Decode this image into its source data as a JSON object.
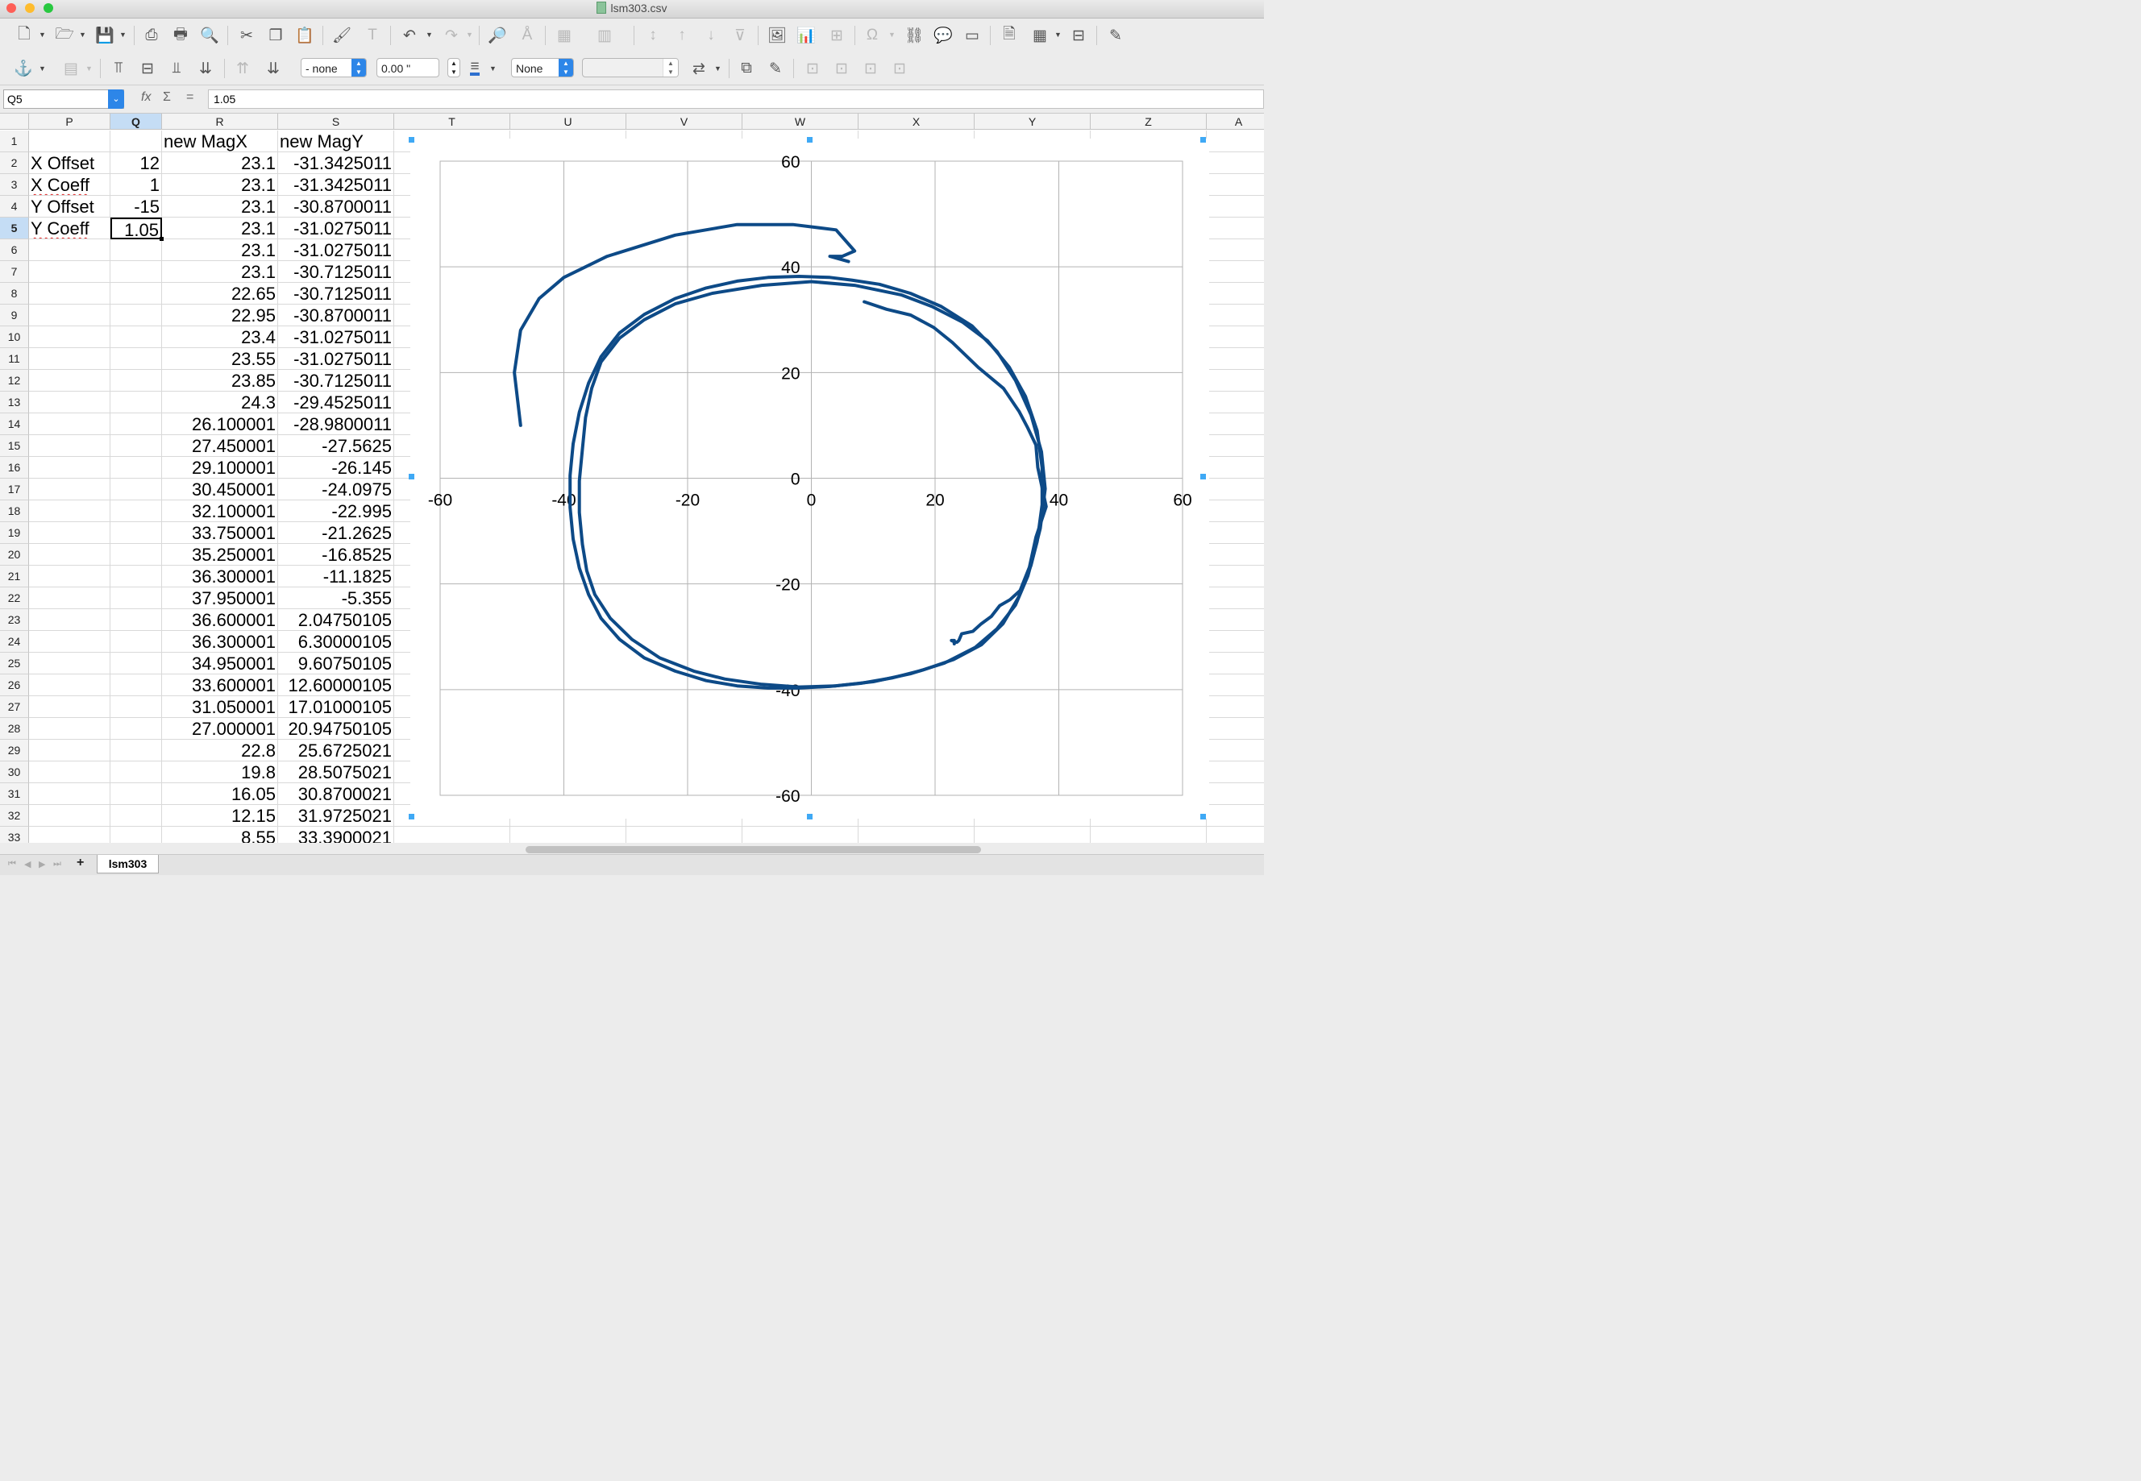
{
  "window": {
    "title": "lsm303.csv",
    "colors": {
      "close": "#fe5f57",
      "minimize": "#febc2e",
      "zoom": "#28c840"
    }
  },
  "toolbar1": {
    "icons": [
      "new-document-icon",
      "open-folder-icon",
      "save-icon",
      "export-pdf-icon",
      "print-icon",
      "print-preview-icon",
      "cut-icon",
      "copy-icon",
      "paste-icon",
      "clone-formatting-icon",
      "clear-formatting-icon",
      "undo-icon",
      "redo-icon",
      "find-replace-icon",
      "spelling-icon",
      "table-icon",
      "columns-icon",
      "sort-ascending-icon",
      "sort-descending-icon",
      "autofilter-icon",
      "insert-image-icon",
      "insert-chart-icon",
      "pivot-table-icon",
      "special-character-icon",
      "hyperlink-icon",
      "comment-icon",
      "headers-footers-icon",
      "define-print-area-icon",
      "freeze-rows-icon",
      "split-window-icon",
      "show-draw-functions-icon"
    ]
  },
  "toolbar2": {
    "line_style_value": "- none",
    "line_width_value": "0.00 \"",
    "area_style_value": "None",
    "color_value": ""
  },
  "formula_bar": {
    "cell_ref": "Q5",
    "formula": "1.05",
    "fx": "fx",
    "sigma": "Σ",
    "equals": "="
  },
  "sheet": {
    "columns": [
      "P",
      "Q",
      "R",
      "S",
      "T",
      "U",
      "V",
      "W",
      "X",
      "Y",
      "Z",
      "A"
    ],
    "selected_column": "Q",
    "selected_row": 5,
    "rows": [
      {
        "n": 1,
        "P": "",
        "Q": "",
        "R": "new MagX",
        "S": "new MagY"
      },
      {
        "n": 2,
        "P": "X Offset",
        "Q": "12",
        "R": "23.1",
        "S": "-31.3425011"
      },
      {
        "n": 3,
        "P": "X Coeff",
        "Q": "1",
        "R": "23.1",
        "S": "-31.3425011"
      },
      {
        "n": 4,
        "P": "Y Offset",
        "Q": "-15",
        "R": "23.1",
        "S": "-30.8700011"
      },
      {
        "n": 5,
        "P": "Y Coeff",
        "Q": "1.05",
        "R": "23.1",
        "S": "-31.0275011"
      },
      {
        "n": 6,
        "P": "",
        "Q": "",
        "R": "23.1",
        "S": "-31.0275011"
      },
      {
        "n": 7,
        "P": "",
        "Q": "",
        "R": "23.1",
        "S": "-30.7125011"
      },
      {
        "n": 8,
        "P": "",
        "Q": "",
        "R": "22.65",
        "S": "-30.7125011"
      },
      {
        "n": 9,
        "P": "",
        "Q": "",
        "R": "22.95",
        "S": "-30.8700011"
      },
      {
        "n": 10,
        "P": "",
        "Q": "",
        "R": "23.4",
        "S": "-31.0275011"
      },
      {
        "n": 11,
        "P": "",
        "Q": "",
        "R": "23.55",
        "S": "-31.0275011"
      },
      {
        "n": 12,
        "P": "",
        "Q": "",
        "R": "23.85",
        "S": "-30.7125011"
      },
      {
        "n": 13,
        "P": "",
        "Q": "",
        "R": "24.3",
        "S": "-29.4525011"
      },
      {
        "n": 14,
        "P": "",
        "Q": "",
        "R": "26.100001",
        "S": "-28.9800011"
      },
      {
        "n": 15,
        "P": "",
        "Q": "",
        "R": "27.450001",
        "S": "-27.5625"
      },
      {
        "n": 16,
        "P": "",
        "Q": "",
        "R": "29.100001",
        "S": "-26.145"
      },
      {
        "n": 17,
        "P": "",
        "Q": "",
        "R": "30.450001",
        "S": "-24.0975"
      },
      {
        "n": 18,
        "P": "",
        "Q": "",
        "R": "32.100001",
        "S": "-22.995"
      },
      {
        "n": 19,
        "P": "",
        "Q": "",
        "R": "33.750001",
        "S": "-21.2625"
      },
      {
        "n": 20,
        "P": "",
        "Q": "",
        "R": "35.250001",
        "S": "-16.8525"
      },
      {
        "n": 21,
        "P": "",
        "Q": "",
        "R": "36.300001",
        "S": "-11.1825"
      },
      {
        "n": 22,
        "P": "",
        "Q": "",
        "R": "37.950001",
        "S": "-5.355"
      },
      {
        "n": 23,
        "P": "",
        "Q": "",
        "R": "36.600001",
        "S": "2.04750105"
      },
      {
        "n": 24,
        "P": "",
        "Q": "",
        "R": "36.300001",
        "S": "6.30000105"
      },
      {
        "n": 25,
        "P": "",
        "Q": "",
        "R": "34.950001",
        "S": "9.60750105"
      },
      {
        "n": 26,
        "P": "",
        "Q": "",
        "R": "33.600001",
        "S": "12.60000105"
      },
      {
        "n": 27,
        "P": "",
        "Q": "",
        "R": "31.050001",
        "S": "17.01000105"
      },
      {
        "n": 28,
        "P": "",
        "Q": "",
        "R": "27.000001",
        "S": "20.94750105"
      },
      {
        "n": 29,
        "P": "",
        "Q": "",
        "R": "22.8",
        "S": "25.6725021"
      },
      {
        "n": 30,
        "P": "",
        "Q": "",
        "R": "19.8",
        "S": "28.5075021"
      },
      {
        "n": 31,
        "P": "",
        "Q": "",
        "R": "16.05",
        "S": "30.8700021"
      },
      {
        "n": 32,
        "P": "",
        "Q": "",
        "R": "12.15",
        "S": "31.9725021"
      },
      {
        "n": 33,
        "P": "",
        "Q": "",
        "R": "8.55",
        "S": "33.3900021"
      }
    ]
  },
  "chart_data": {
    "type": "scatter",
    "line_color": "#0d4a87",
    "xlim": [
      -60,
      60
    ],
    "ylim": [
      -60,
      60
    ],
    "x_ticks": [
      "-60",
      "-40",
      "-20",
      "0",
      "20",
      "40",
      "60"
    ],
    "y_ticks": [
      "60",
      "40",
      "20",
      "0",
      "-20",
      "-40",
      "-60"
    ],
    "grid": true,
    "series": [
      {
        "x": [
          23.1,
          23.1,
          23.1,
          23.1,
          23.1,
          23.1,
          22.65,
          22.95,
          23.4,
          23.55,
          23.85,
          24.3,
          26.1,
          27.45,
          29.1,
          30.45,
          32.1,
          33.75,
          35.25,
          36.3,
          37.95,
          36.6,
          36.3,
          34.95,
          33.6,
          31.05,
          27.0,
          22.8,
          19.8,
          16.05,
          12.15,
          8.55
        ],
        "y": [
          -31.34,
          -31.34,
          -30.87,
          -31.03,
          -31.03,
          -30.71,
          -30.71,
          -30.87,
          -31.03,
          -31.03,
          -30.71,
          -29.45,
          -28.98,
          -27.56,
          -26.15,
          -24.1,
          -23.0,
          -21.26,
          -16.85,
          -11.18,
          -5.36,
          2.05,
          6.3,
          9.61,
          12.6,
          17.01,
          20.95,
          25.67,
          28.51,
          30.87,
          31.97,
          33.39
        ]
      },
      {
        "x": [
          6.5,
          3,
          -2,
          -7,
          -12,
          -17,
          -22,
          -27,
          -31,
          -34,
          -36,
          -37.5,
          -38.5,
          -39,
          -39,
          -38.5,
          -37.5,
          -36,
          -34,
          -31,
          -27,
          -22,
          -17,
          -12,
          -7,
          -2,
          3,
          8,
          13,
          18,
          23,
          27.5,
          31,
          33.5,
          35.5,
          37,
          37.8,
          37.2,
          35.5,
          33,
          30,
          26,
          21,
          16,
          11,
          6.5
        ],
        "y": [
          37.5,
          38,
          38.2,
          38,
          37.3,
          36,
          34,
          31,
          27.5,
          23,
          18,
          12.5,
          6.5,
          0.5,
          -5.5,
          -11.5,
          -17,
          -22,
          -26.5,
          -30.5,
          -34,
          -36.5,
          -38.3,
          -39.3,
          -39.7,
          -39.7,
          -39.4,
          -38.8,
          -37.8,
          -36.3,
          -34.3,
          -31.5,
          -27.5,
          -22.5,
          -16.5,
          -9.5,
          -2,
          5,
          12,
          18.5,
          24,
          28.8,
          32.5,
          35,
          36.7,
          37.5
        ]
      },
      {
        "x": [
          7,
          0,
          -8,
          -16,
          -22,
          -27,
          -31,
          -34,
          -35.5,
          -36.5,
          -37,
          -37.5,
          -37.5,
          -37,
          -36.3,
          -35,
          -32.5,
          -29,
          -24.5,
          -19,
          -14,
          -8,
          -2,
          4,
          10,
          16,
          21.5,
          26.5,
          30,
          33,
          35,
          36.5,
          37.3,
          37.3,
          36.5,
          34.6,
          32,
          28.5,
          24.5,
          19.5,
          14.5,
          7
        ],
        "y": [
          36.5,
          37.2,
          36.5,
          35,
          33,
          30,
          26.5,
          22,
          17,
          11.5,
          5.5,
          -0.5,
          -6.5,
          -12.5,
          -17.5,
          -22,
          -26.5,
          -30.5,
          -34,
          -36.5,
          -38,
          -39,
          -39.5,
          -39.3,
          -38.5,
          -37,
          -35,
          -32,
          -28.5,
          -24,
          -18.5,
          -12,
          -5,
          2,
          9,
          15.5,
          21,
          26,
          29.5,
          32.5,
          34.7,
          36.5
        ]
      },
      {
        "x": [
          -47,
          -48,
          -47,
          -44,
          -40,
          -33,
          -22,
          -12,
          -3,
          4,
          7,
          5,
          3,
          6
        ],
        "y": [
          10,
          20,
          28,
          34,
          38,
          42,
          46,
          48,
          48,
          47,
          43,
          42,
          42,
          41
        ]
      }
    ]
  },
  "sheet_tabs": {
    "active": "lsm303",
    "add_label": "+"
  }
}
